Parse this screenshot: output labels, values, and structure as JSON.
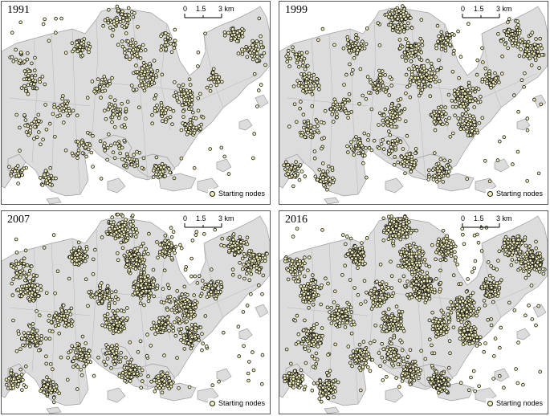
{
  "map": {
    "land_color": "#dcdcdc",
    "land_outline": "#9e9e9e",
    "node_fill": "#f4f1b8",
    "node_stroke": "#1a1a1a",
    "scale_labels": [
      "0",
      "1.5",
      "3 km"
    ],
    "legend_label": "Starting nodes"
  },
  "panels": [
    {
      "year": "1991",
      "node_density": 1.0
    },
    {
      "year": "1999",
      "node_density": 1.55
    },
    {
      "year": "2007",
      "node_density": 2.1
    },
    {
      "year": "2016",
      "node_density": 2.7
    }
  ]
}
